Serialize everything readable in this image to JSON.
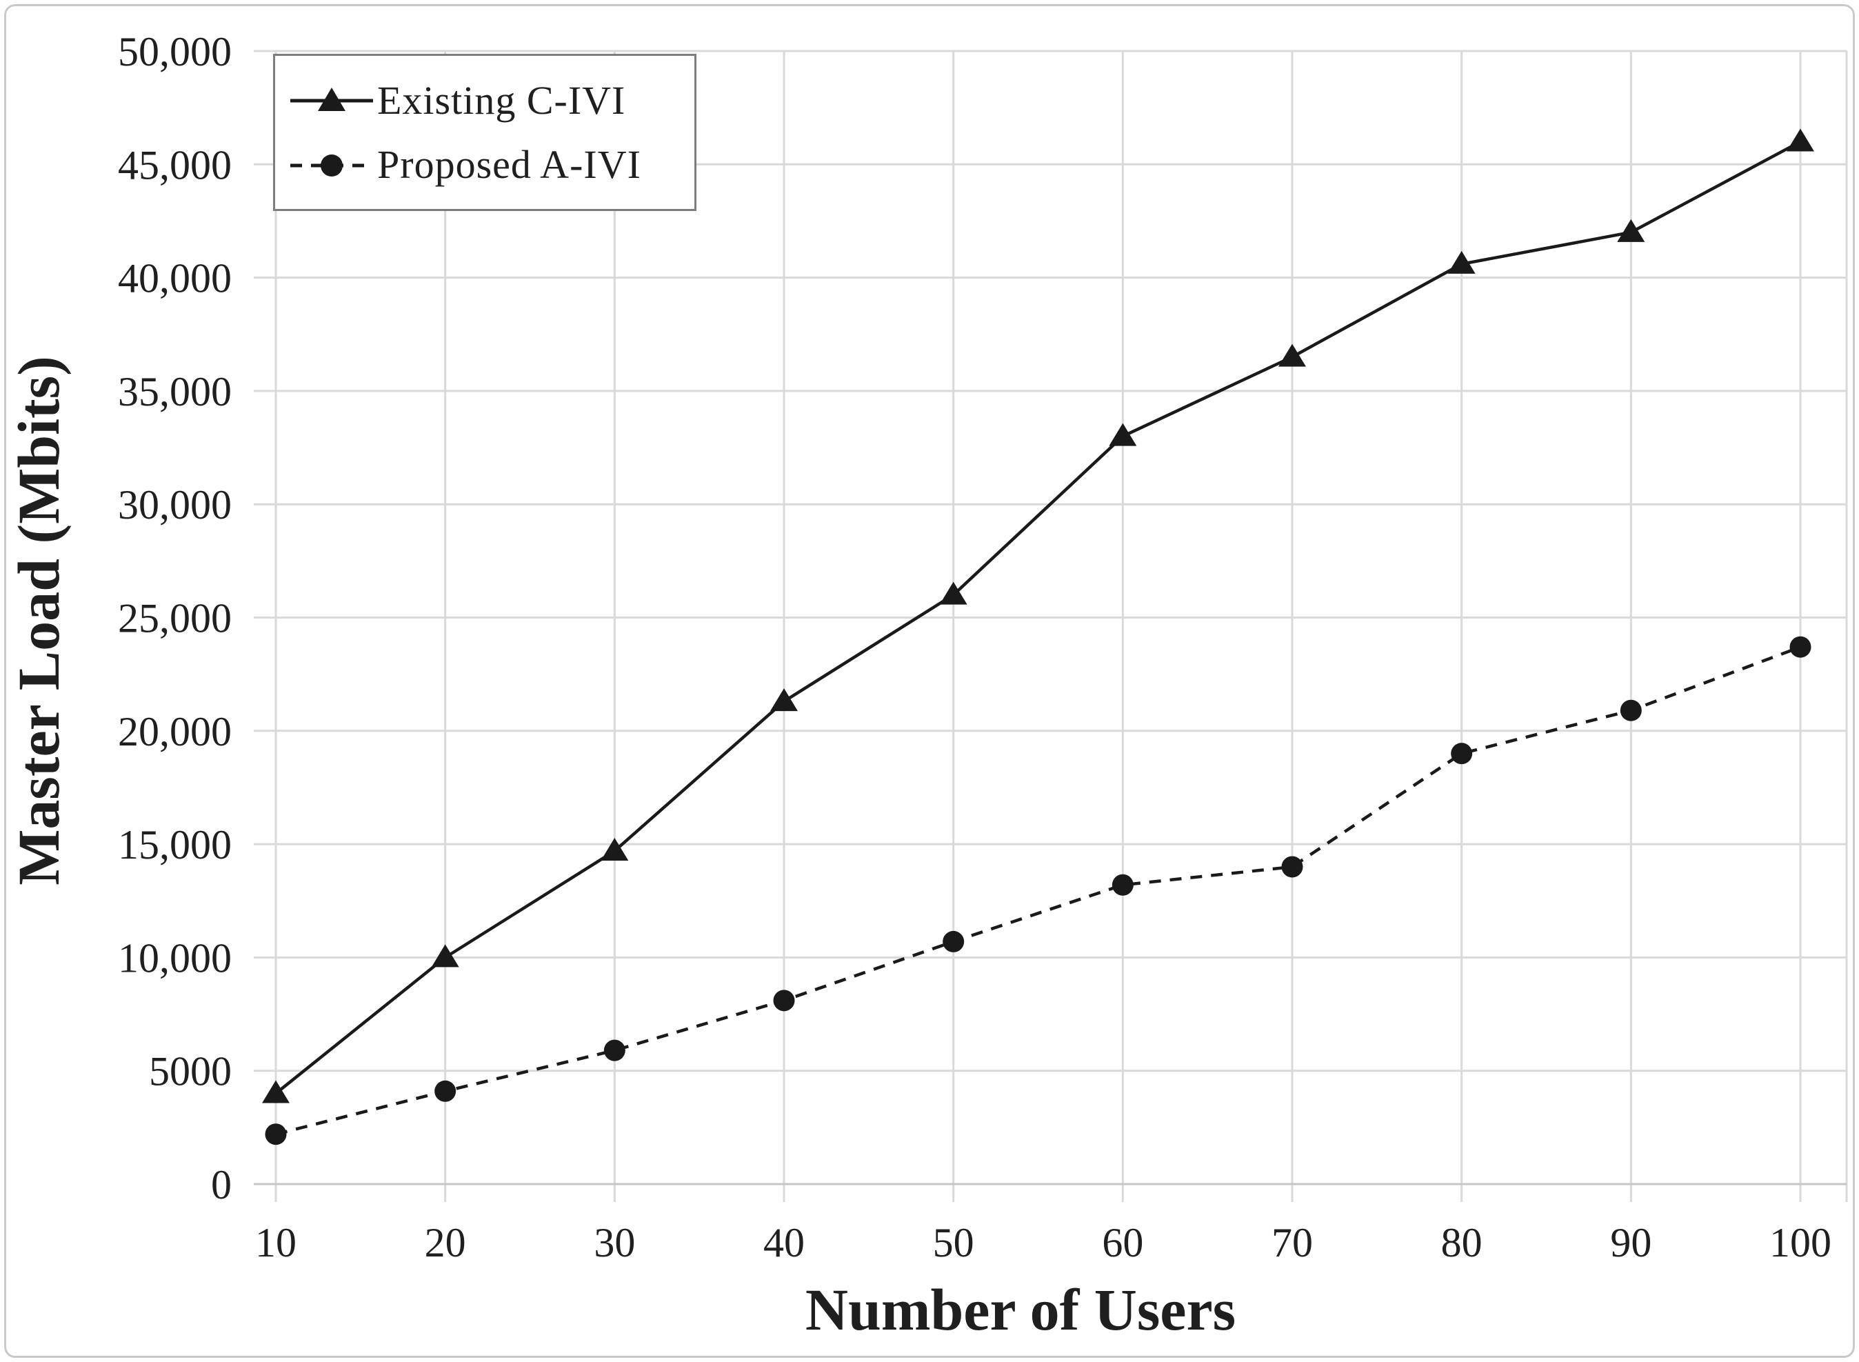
{
  "figure": {
    "background": "#ffffff",
    "frame_border": "#c9c9c9"
  },
  "colors": {
    "grid": "#d9d9d9",
    "axis_line": "#c6c6c6",
    "text": "#1f1f1f",
    "series": "#1a1a1a",
    "legend_border": "#7d7d7d"
  },
  "legend": {
    "position": "top-left",
    "items": [
      {
        "label": "Existing C-IVI",
        "marker": "triangle",
        "line_style": "solid"
      },
      {
        "label": "Proposed A-IVI",
        "marker": "circle",
        "line_style": "dashed"
      }
    ]
  },
  "chart_data": {
    "type": "line",
    "title": "",
    "xlabel": "Number of Users",
    "ylabel": "Master Load (Mbits)",
    "grid": true,
    "legend_position": "top-left",
    "x": [
      10,
      20,
      30,
      40,
      50,
      60,
      70,
      80,
      90,
      100
    ],
    "x_tick_labels": [
      "10",
      "20",
      "30",
      "40",
      "50",
      "60",
      "70",
      "80",
      "90",
      "100"
    ],
    "xlim": [
      10,
      100
    ],
    "ylim": [
      0,
      50000
    ],
    "y_ticks": [
      0,
      5000,
      10000,
      15000,
      20000,
      25000,
      30000,
      35000,
      40000,
      45000,
      50000
    ],
    "y_tick_labels": [
      "0",
      "5000",
      "10,000",
      "15,000",
      "20,000",
      "25,000",
      "30,000",
      "35,000",
      "40,000",
      "45,000",
      "50,000"
    ],
    "series": [
      {
        "name": "Existing C-IVI",
        "marker": "triangle",
        "line_style": "solid",
        "color": "#1a1a1a",
        "values": [
          4000,
          10000,
          14700,
          21300,
          26000,
          33000,
          36500,
          40600,
          42000,
          46000
        ]
      },
      {
        "name": "Proposed A-IVI",
        "marker": "circle",
        "line_style": "dashed",
        "color": "#1a1a1a",
        "values": [
          2200,
          4100,
          5900,
          8100,
          10700,
          13200,
          14000,
          19000,
          20900,
          23700
        ]
      }
    ]
  }
}
